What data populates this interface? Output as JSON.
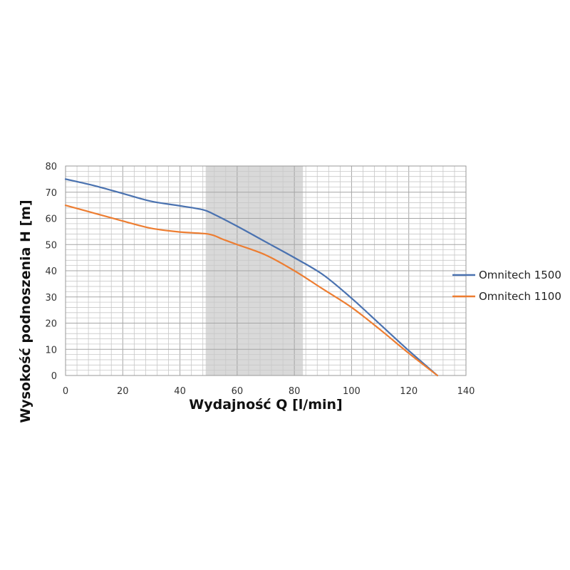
{
  "chart_data": {
    "type": "line",
    "xlabel": "Wydajność Q [l/min]",
    "ylabel": "Wysokość podnoszenia H [m]",
    "xlim": [
      0,
      140
    ],
    "ylim": [
      0,
      80
    ],
    "x_ticks": [
      0,
      20,
      40,
      60,
      80,
      100,
      120,
      140
    ],
    "y_ticks": [
      0,
      10,
      20,
      30,
      40,
      50,
      60,
      70,
      80
    ],
    "x_tick_labels": [
      "0",
      "20",
      "40",
      "60",
      "80",
      "100",
      "120",
      "140"
    ],
    "y_tick_labels": [
      "0",
      "10",
      "20",
      "30",
      "40",
      "50",
      "60",
      "70",
      "80"
    ],
    "grid": true,
    "grid_minor_x_step": 4,
    "grid_minor_y_step": 2,
    "highlight_band": {
      "x_from": 49,
      "x_to": 83,
      "color": "#d9d9d9"
    },
    "legend_position": "right",
    "series": [
      {
        "name": "Omnitech 1500",
        "color": "#4a72b0",
        "x": [
          0,
          10,
          20,
          30,
          40,
          48,
          52,
          60,
          70,
          80,
          90,
          100,
          110,
          120,
          130
        ],
        "y": [
          75,
          72.5,
          69.5,
          66.5,
          64.8,
          63.3,
          61.5,
          57,
          51,
          45,
          38.5,
          29.5,
          19.5,
          9.5,
          0
        ]
      },
      {
        "name": "Omnitech 1100",
        "color": "#ed7d31",
        "x": [
          0,
          10,
          20,
          30,
          40,
          50,
          55,
          60,
          70,
          80,
          90,
          100,
          110,
          120,
          130
        ],
        "y": [
          65,
          62,
          59,
          56.2,
          54.8,
          54,
          52,
          50,
          46,
          40,
          33,
          26,
          17.5,
          8.5,
          0
        ]
      }
    ]
  }
}
